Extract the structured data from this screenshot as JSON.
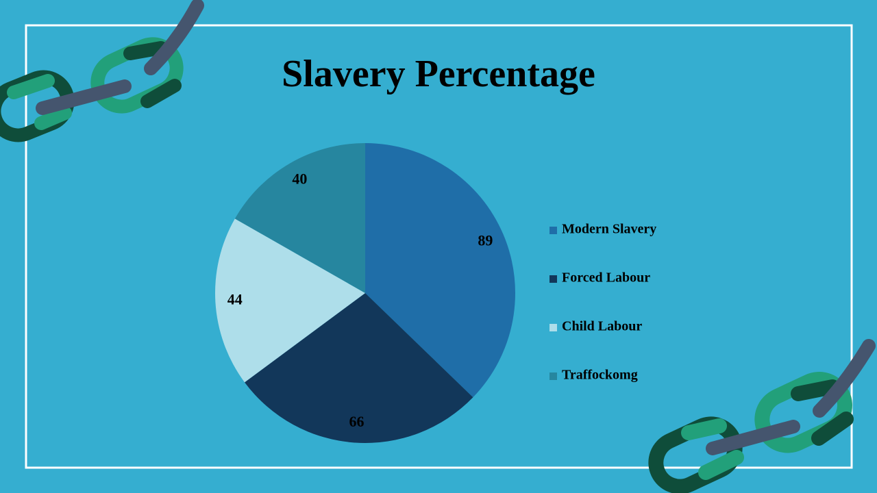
{
  "chart_data": {
    "type": "pie",
    "title": "Slavery Percentage",
    "categories": [
      "Modern Slavery",
      "Forced Labour",
      "Child Labour",
      "Traffockomg"
    ],
    "values": [
      89,
      66,
      44,
      40
    ],
    "colors": [
      "#1f6ea8",
      "#12375a",
      "#aedeea",
      "#26869f"
    ],
    "legend": "right"
  }
}
